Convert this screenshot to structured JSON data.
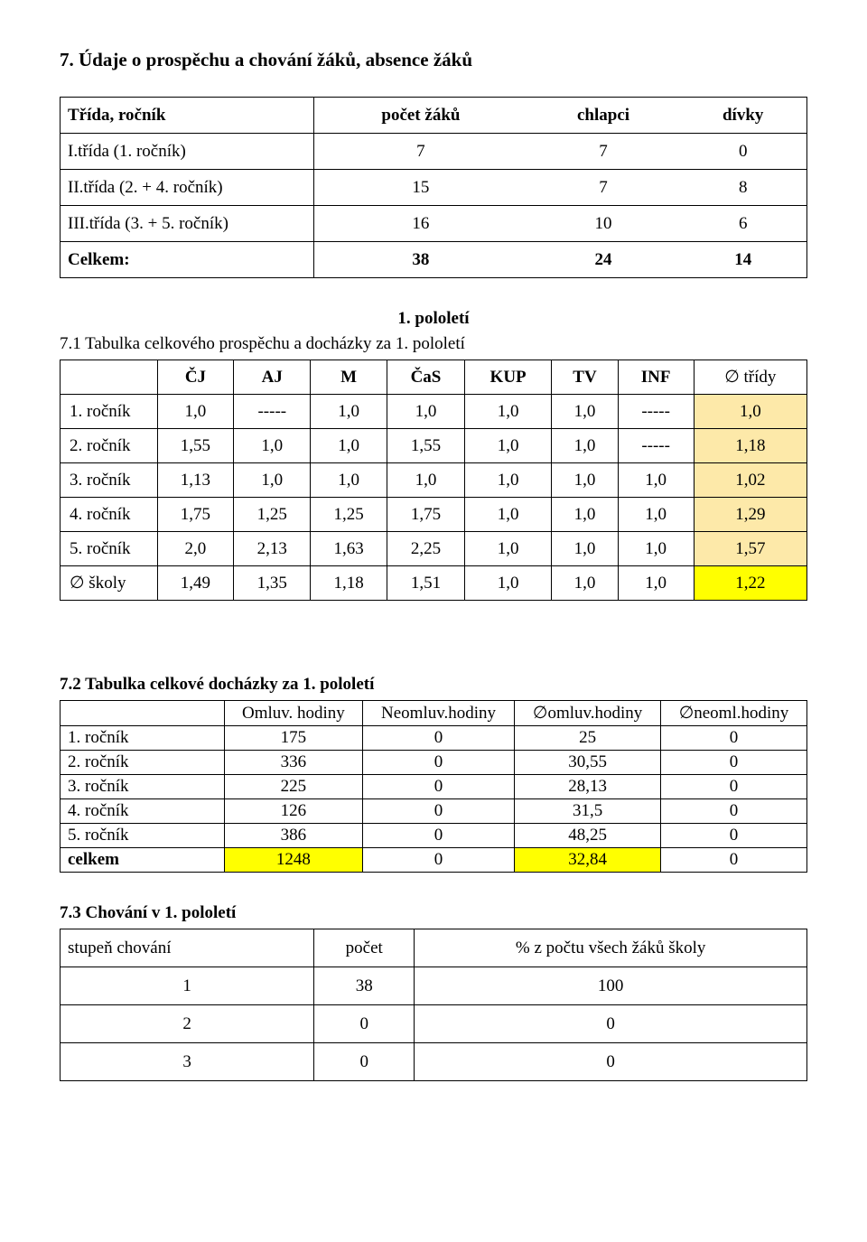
{
  "section7": {
    "title": "7. Údaje o prospěchu a chování žáků, absence žáků",
    "table1": {
      "columns": [
        "Třída, ročník",
        "počet žáků",
        "chlapci",
        "dívky"
      ],
      "rows": [
        {
          "label": "I.třída (1. ročník)",
          "cells": [
            "7",
            "7",
            "0"
          ]
        },
        {
          "label": "II.třída (2. + 4. ročník)",
          "cells": [
            "15",
            "7",
            "8"
          ]
        },
        {
          "label": "III.třída (3. + 5. ročník)",
          "cells": [
            "16",
            "10",
            "6"
          ]
        }
      ],
      "totals": {
        "label": "Celkem:",
        "cells": [
          "38",
          "24",
          "14"
        ]
      }
    },
    "semester_heading": "1. pololetí",
    "table2": {
      "title": "7.1 Tabulka celkového prospěchu a docházky za 1. pololetí",
      "columns": [
        "",
        "ČJ",
        "AJ",
        "M",
        "ČaS",
        "KUP",
        "TV",
        "INF",
        "∅ třídy"
      ],
      "rows": [
        {
          "label": "1. ročník",
          "cells": [
            "1,0",
            "-----",
            "1,0",
            "1,0",
            "1,0",
            "1,0",
            "-----",
            "1,0"
          ],
          "hl": "cream"
        },
        {
          "label": "2. ročník",
          "cells": [
            "1,55",
            "1,0",
            "1,0",
            "1,55",
            "1,0",
            "1,0",
            "-----",
            "1,18"
          ],
          "hl": "cream"
        },
        {
          "label": "3. ročník",
          "cells": [
            "1,13",
            "1,0",
            "1,0",
            "1,0",
            "1,0",
            "1,0",
            "1,0",
            "1,02"
          ],
          "hl": "cream"
        },
        {
          "label": "4. ročník",
          "cells": [
            "1,75",
            "1,25",
            "1,25",
            "1,75",
            "1,0",
            "1,0",
            "1,0",
            "1,29"
          ],
          "hl": "cream"
        },
        {
          "label": "5. ročník",
          "cells": [
            "2,0",
            "2,13",
            "1,63",
            "2,25",
            "1,0",
            "1,0",
            "1,0",
            "1,57"
          ],
          "hl": "cream"
        }
      ],
      "totals": {
        "label": "∅ školy",
        "cells": [
          "1,49",
          "1,35",
          "1,18",
          "1,51",
          "1,0",
          "1,0",
          "1,0",
          "1,22"
        ],
        "hl": "yellow"
      }
    },
    "table3": {
      "title": "7.2 Tabulka celkové docházky za 1. pololetí",
      "columns": [
        "",
        "Omluv. hodiny",
        "Neomluv.hodiny",
        "∅omluv.hodiny",
        "∅neoml.hodiny"
      ],
      "rows": [
        {
          "label": "1. ročník",
          "cells": [
            "175",
            "0",
            "25",
            "0"
          ]
        },
        {
          "label": "2. ročník",
          "cells": [
            "336",
            "0",
            "30,55",
            "0"
          ]
        },
        {
          "label": "3. ročník",
          "cells": [
            "225",
            "0",
            "28,13",
            "0"
          ]
        },
        {
          "label": "4. ročník",
          "cells": [
            "126",
            "0",
            "31,5",
            "0"
          ]
        },
        {
          "label": "5. ročník",
          "cells": [
            "386",
            "0",
            "48,25",
            "0"
          ]
        }
      ],
      "totals": {
        "label": "celkem",
        "cells": [
          "1248",
          "0",
          "32,84",
          "0"
        ],
        "hl": [
          "yellow",
          "",
          "yellow",
          ""
        ]
      }
    },
    "table4": {
      "title": "7.3 Chování v 1. pololetí",
      "columns": [
        "stupeň chování",
        "počet",
        "% z počtu všech žáků školy"
      ],
      "rows": [
        {
          "label": "1",
          "cells": [
            "38",
            "100"
          ]
        },
        {
          "label": "2",
          "cells": [
            "0",
            "0"
          ]
        },
        {
          "label": "3",
          "cells": [
            "0",
            "0"
          ]
        }
      ]
    }
  },
  "colors": {
    "cream_highlight": "#fde9a9",
    "yellow_highlight": "#ffff00",
    "border": "#000000",
    "text": "#000000",
    "background": "#ffffff"
  },
  "typography": {
    "body_fontsize_pt": 14,
    "heading_fontsize_pt": 16,
    "font_family": "Times New Roman"
  }
}
